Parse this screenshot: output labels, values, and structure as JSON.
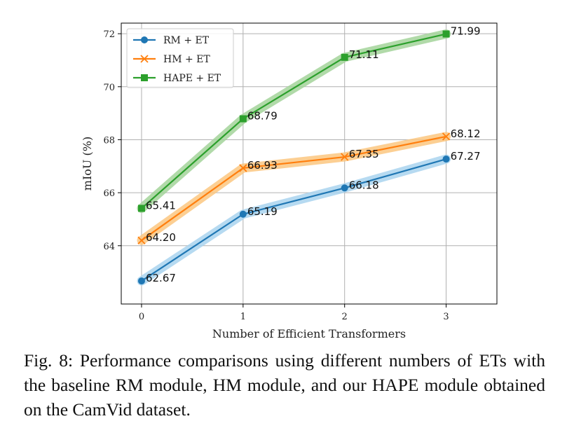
{
  "chart_data": {
    "type": "line",
    "xlabel": "Number of Efficient Transformers",
    "ylabel": "mIoU (%)",
    "x": [
      0,
      1,
      2,
      3
    ],
    "x_ticks": [
      "0",
      "1",
      "2",
      "3"
    ],
    "y_ticks": [
      "64",
      "66",
      "68",
      "70",
      "72"
    ],
    "xlim": [
      -0.2,
      3.5
    ],
    "ylim": [
      61.8,
      72.4
    ],
    "grid": true,
    "legend": "top-left",
    "series": [
      {
        "name": "RM + ET",
        "color": "#1f77b4",
        "band": "#a9d3ef",
        "marker": "circle",
        "values": [
          62.67,
          65.19,
          66.18,
          67.27
        ],
        "labels": [
          "62.67",
          "65.19",
          "66.18",
          "67.27"
        ]
      },
      {
        "name": "HM + ET",
        "color": "#ff7f0e",
        "band": "#fbc780",
        "marker": "x",
        "values": [
          64.2,
          66.93,
          67.35,
          68.12
        ],
        "labels": [
          "64.20",
          "66.93",
          "67.35",
          "68.12"
        ]
      },
      {
        "name": "HAPE + ET",
        "color": "#2ca02c",
        "band": "#a3d39a",
        "marker": "square",
        "values": [
          65.41,
          68.79,
          71.11,
          71.99
        ],
        "labels": [
          "65.41",
          "68.79",
          "71.11",
          "71.99"
        ]
      }
    ]
  },
  "caption": "Fig. 8: Performance comparisons using different numbers of ETs with the baseline RM module, HM module, and our HAPE module obtained on the CamVid dataset."
}
